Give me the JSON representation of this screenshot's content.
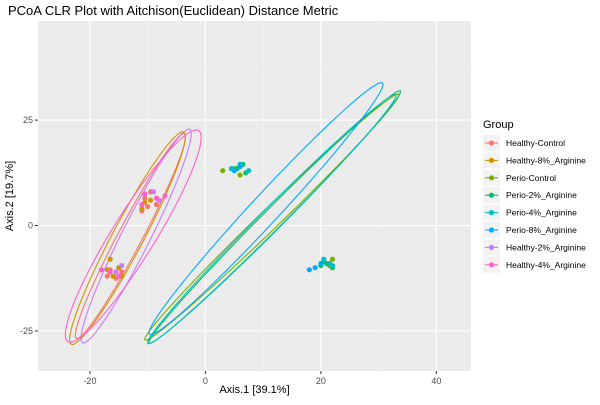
{
  "chart_data": {
    "type": "scatter",
    "title": "PCoA CLR Plot with Aitchison(Euclidean) Distance Metric",
    "xlabel": "Axis.1   [39.1%]",
    "ylabel": "Axis.2   [19.7%]",
    "xlim": [
      -29,
      46
    ],
    "ylim": [
      -34.5,
      48.5
    ],
    "x_ticks": [
      -20,
      0,
      20,
      40
    ],
    "y_ticks": [
      -25,
      0,
      25
    ],
    "x_tick_labels": [
      "-20",
      "0",
      "20",
      "40"
    ],
    "y_tick_labels": [
      "-25",
      "0",
      "25"
    ],
    "grid": true,
    "legend_title": "Group",
    "legend_position": "right",
    "series": [
      {
        "name": "Healthy-Control",
        "color": "#F8766D",
        "points": [
          [
            -17.0,
            -12.0
          ],
          [
            -16.5,
            -10.5
          ],
          [
            -15.5,
            -12.5
          ],
          [
            -14.5,
            -11.0
          ],
          [
            -10.5,
            6.5
          ],
          [
            -10.0,
            4.5
          ],
          [
            -9.5,
            8.0
          ],
          [
            -8.5,
            5.0
          ],
          [
            -11.0,
            3.5
          ]
        ],
        "ellipse": {
          "center": [
            -13.0,
            -2.5
          ],
          "axis_angle_deg": -111,
          "semi_major": 26,
          "semi_minor": 2.2
        }
      },
      {
        "name": "Healthy-8%_Arginine",
        "color": "#CD9600",
        "points": [
          [
            -17.0,
            -10.5
          ],
          [
            -16.0,
            -12.0
          ],
          [
            -15.0,
            -10.0
          ],
          [
            -14.5,
            -12.0
          ],
          [
            -10.5,
            5.5
          ],
          [
            -9.5,
            6.0
          ],
          [
            -11.0,
            4.0
          ],
          [
            -16.5,
            -8.0
          ]
        ],
        "ellipse": {
          "center": [
            -13.5,
            -3.0
          ],
          "axis_angle_deg": -111,
          "semi_major": 27,
          "semi_minor": 2.8
        }
      },
      {
        "name": "Perio-Control",
        "color": "#7CAE00",
        "points": [
          [
            3.0,
            13.0
          ],
          [
            5.0,
            13.5
          ],
          [
            6.0,
            12.0
          ],
          [
            20.5,
            -8.5
          ],
          [
            21.5,
            -9.5
          ],
          [
            22.0,
            -8.0
          ]
        ],
        "ellipse": {
          "center": [
            11.5,
            2.0
          ],
          "axis_angle_deg": -127,
          "semi_major": 36.5,
          "semi_minor": 2.0
        }
      },
      {
        "name": "Perio-2%_Arginine",
        "color": "#00BE67",
        "points": [
          [
            5.5,
            13.5
          ],
          [
            6.5,
            14.5
          ],
          [
            7.0,
            12.5
          ],
          [
            21.0,
            -9.0
          ],
          [
            22.0,
            -10.0
          ],
          [
            20.0,
            -9.5
          ]
        ],
        "ellipse": {
          "center": [
            12.0,
            2.0
          ],
          "axis_angle_deg": -126,
          "semi_major": 37,
          "semi_minor": 2.0
        }
      },
      {
        "name": "Perio-4%_Arginine",
        "color": "#00BFC4",
        "points": [
          [
            4.5,
            13.5
          ],
          [
            6.0,
            14.5
          ],
          [
            7.5,
            13.0
          ],
          [
            20.5,
            -8.0
          ],
          [
            21.5,
            -9.0
          ],
          [
            22.0,
            -9.5
          ]
        ],
        "ellipse": {
          "center": [
            11.5,
            1.5
          ],
          "axis_angle_deg": -126,
          "semi_major": 36.5,
          "semi_minor": 2.2
        }
      },
      {
        "name": "Perio-8%_Arginine",
        "color": "#00A9FF",
        "points": [
          [
            5.0,
            13.0
          ],
          [
            6.0,
            14.0
          ],
          [
            18.0,
            -10.5
          ],
          [
            19.0,
            -10.0
          ],
          [
            20.0,
            -9.0
          ]
        ],
        "ellipse": {
          "center": [
            10.5,
            4.0
          ],
          "axis_angle_deg": -124,
          "semi_major": 36,
          "semi_minor": 2.8
        }
      },
      {
        "name": "Healthy-2%_Arginine",
        "color": "#C77CFF",
        "points": [
          [
            -14.5,
            -9.5
          ],
          [
            -15.5,
            -11.0
          ],
          [
            -9.0,
            8.0
          ],
          [
            -8.0,
            6.0
          ]
        ],
        "ellipse": {
          "center": [
            -12.0,
            -2.5
          ],
          "axis_angle_deg": -110,
          "semi_major": 27,
          "semi_minor": 2.6
        }
      },
      {
        "name": "Healthy-4%_Arginine",
        "color": "#FF61CC",
        "points": [
          [
            -18.0,
            -10.5
          ],
          [
            -16.5,
            -11.0
          ],
          [
            -15.0,
            -12.0
          ],
          [
            -11.0,
            5.0
          ],
          [
            -10.5,
            7.5
          ],
          [
            -7.0,
            7.0
          ],
          [
            -8.5,
            6.5
          ]
        ],
        "ellipse": {
          "center": [
            -12.5,
            -2.5
          ],
          "axis_angle_deg": -114,
          "semi_major": 27.5,
          "semi_minor": 4.0
        }
      }
    ]
  }
}
